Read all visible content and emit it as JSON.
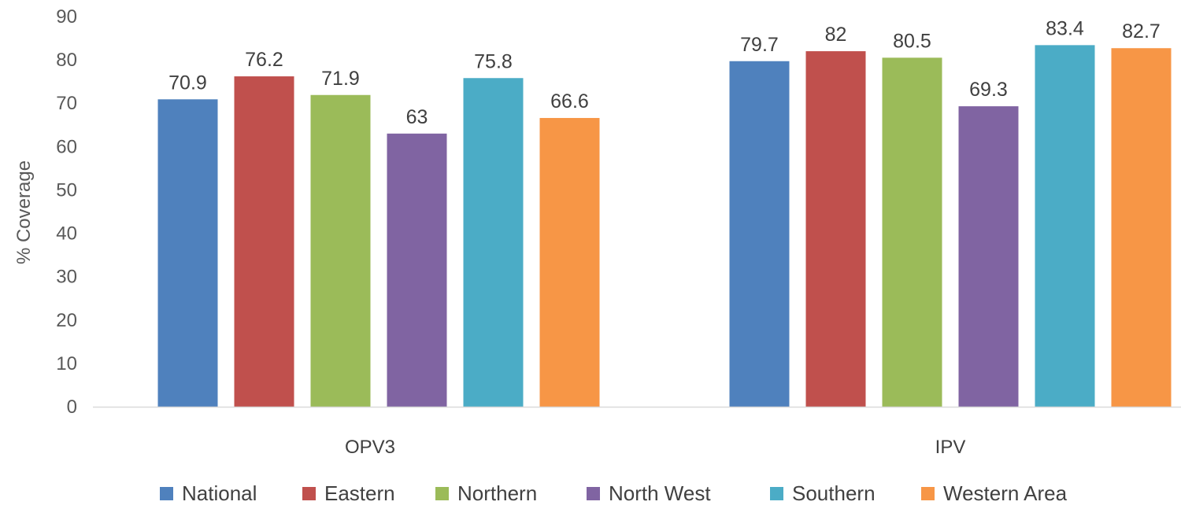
{
  "chart_data": {
    "type": "bar",
    "title": "",
    "xlabel": "",
    "ylabel": "% Coverage",
    "ylim": [
      0,
      90
    ],
    "yticks": [
      0,
      10,
      20,
      30,
      40,
      50,
      60,
      70,
      80,
      90
    ],
    "grid": false,
    "legend_position": "bottom",
    "categories": [
      "OPV3",
      "IPV"
    ],
    "series": [
      {
        "name": "National",
        "color": "#4F81BD",
        "values": [
          70.9,
          79.7
        ],
        "labels": [
          "70.9",
          "79.7"
        ]
      },
      {
        "name": "Eastern",
        "color": "#C0504D",
        "values": [
          76.2,
          82
        ],
        "labels": [
          "76.2",
          "82"
        ]
      },
      {
        "name": "Northern",
        "color": "#9BBB59",
        "values": [
          71.9,
          80.5
        ],
        "labels": [
          "71.9",
          "80.5"
        ]
      },
      {
        "name": "North West",
        "color": "#8064A2",
        "values": [
          63,
          69.3
        ],
        "labels": [
          "63",
          "69.3"
        ]
      },
      {
        "name": "Southern",
        "color": "#4BACC6",
        "values": [
          75.8,
          83.4
        ],
        "labels": [
          "75.8",
          "83.4"
        ]
      },
      {
        "name": "Western Area",
        "color": "#F79646",
        "values": [
          66.6,
          82.7
        ],
        "labels": [
          "66.6",
          "82.7"
        ]
      }
    ]
  }
}
